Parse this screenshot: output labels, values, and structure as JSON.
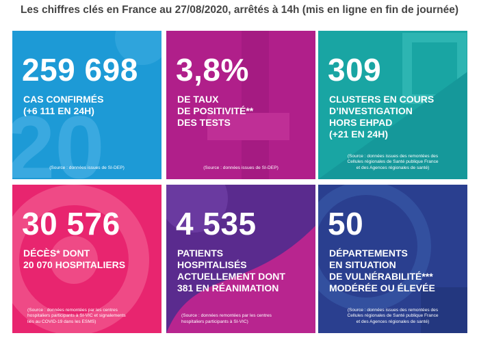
{
  "title": "Les chiffres clés en France au 27/08/2020, arrêtés à 14h (mis en ligne en fin de journée)",
  "tiles": [
    {
      "number": "259 698",
      "lines": [
        "CAS CONFIRMÉS",
        "(+6 111 EN 24H)"
      ],
      "source": [
        "(Source : données issues de SI-DEP)"
      ]
    },
    {
      "number": "3,8%",
      "lines": [
        "DE TAUX",
        "DE POSITIVITÉ**",
        "DES TESTS"
      ],
      "source": [
        "(Source : données issues de SI-DEP)"
      ]
    },
    {
      "number": "309",
      "lines": [
        "CLUSTERS EN COURS",
        "D’INVESTIGATION",
        "HORS EHPAD",
        "(+21 EN 24H)"
      ],
      "source": [
        "(Source : données issues des remontées des",
        "Cellules régionales de Santé publique France",
        "et des Agences régionales de santé)"
      ]
    },
    {
      "number": "30 576",
      "lines": [
        "DÉCÈS* DONT",
        "20 070 HOSPITALIERS"
      ],
      "source": [
        "(Source : données remontées par les centres",
        "hospitaliers participants à SI-VIC et signalements",
        "liés au COVID-19 dans les ESMS)"
      ]
    },
    {
      "number": "4 535",
      "lines": [
        "PATIENTS",
        "HOSPITALISÉS",
        "ACTUELLEMENT DONT",
        "381 EN RÉANIMATION"
      ],
      "source": [
        "(Source : données remontées par les centres",
        "hospitaliers participants à SI-VIC)"
      ]
    },
    {
      "number": "50",
      "lines": [
        "DÉPARTEMENTS",
        "EN SITUATION",
        "DE VULNÉRABILITÉ***",
        "MODÉRÉE OU ÉLEVÉE"
      ],
      "source": [
        "(Source : données issues des remontées des",
        "Cellules régionales de Santé publique France",
        "et des Agences régionales de santé)"
      ]
    }
  ]
}
